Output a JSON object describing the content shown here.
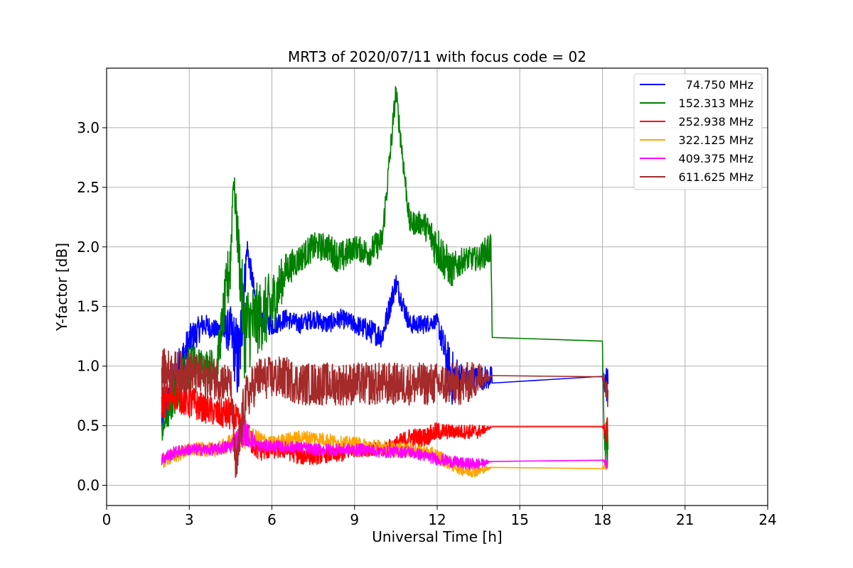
{
  "chart_data": {
    "type": "line",
    "title": "MRT3 of 2020/07/11 with focus code = 02",
    "xlabel": "Universal Time [h]",
    "ylabel": "Y-factor [dB]",
    "xlim": [
      0,
      24
    ],
    "ylim": [
      -0.17,
      3.5
    ],
    "xticks": [
      0,
      3,
      6,
      9,
      12,
      15,
      18,
      21,
      24
    ],
    "xtick_labels": [
      "0",
      "3",
      "6",
      "9",
      "12",
      "15",
      "18",
      "21",
      "24"
    ],
    "yticks": [
      0.0,
      0.5,
      1.0,
      1.5,
      2.0,
      2.5,
      3.0
    ],
    "ytick_labels": [
      "0.0",
      "0.5",
      "1.0",
      "1.5",
      "2.0",
      "2.5",
      "3.0"
    ],
    "grid": true,
    "legend_position": "top-right",
    "series": [
      {
        "name": "74.750 MHz",
        "color": "#0000ff",
        "x": [
          2.0,
          2.5,
          3.0,
          3.5,
          4.0,
          4.5,
          4.8,
          5.1,
          5.5,
          6.0,
          6.5,
          7.0,
          7.5,
          8.0,
          8.5,
          9.0,
          9.5,
          10.0,
          10.5,
          11.0,
          11.5,
          12.0,
          12.5,
          13.0,
          13.5,
          14.0,
          18.0,
          18.2
        ],
        "y": [
          0.55,
          0.9,
          1.2,
          1.35,
          1.3,
          1.3,
          1.0,
          2.0,
          1.4,
          1.35,
          1.4,
          1.35,
          1.4,
          1.35,
          1.4,
          1.35,
          1.3,
          1.25,
          1.7,
          1.35,
          1.35,
          1.38,
          0.9,
          0.9,
          0.9,
          0.9,
          0.89,
          0.85
        ],
        "noise": [
          0.2,
          0.2,
          0.15,
          0.1,
          0.08,
          0.2,
          0.4,
          0.1,
          0.1,
          0.1,
          0.08,
          0.08,
          0.08,
          0.08,
          0.08,
          0.08,
          0.1,
          0.1,
          0.1,
          0.08,
          0.08,
          0.06,
          0.25,
          0.1,
          0.1,
          0.1,
          0.05,
          0.2
        ]
      },
      {
        "name": "152.313 MHz",
        "color": "#008000",
        "x": [
          2.0,
          2.5,
          3.0,
          3.5,
          4.0,
          4.5,
          4.6,
          5.0,
          5.5,
          6.0,
          6.5,
          7.0,
          7.5,
          8.0,
          8.5,
          9.0,
          9.5,
          10.0,
          10.5,
          11.0,
          11.5,
          12.0,
          12.5,
          13.0,
          13.5,
          13.95,
          14.0,
          18.0,
          18.05,
          18.2
        ],
        "y": [
          0.45,
          0.8,
          1.0,
          1.0,
          1.0,
          1.9,
          2.6,
          1.3,
          1.4,
          1.5,
          1.8,
          1.9,
          2.0,
          2.0,
          1.9,
          2.0,
          1.95,
          2.05,
          3.3,
          2.2,
          2.2,
          2.0,
          1.8,
          1.9,
          1.9,
          2.0,
          1.24,
          1.21,
          0.4,
          0.3
        ],
        "noise": [
          0.1,
          0.2,
          0.2,
          0.15,
          0.15,
          0.3,
          0.1,
          0.4,
          0.3,
          0.3,
          0.15,
          0.12,
          0.12,
          0.12,
          0.15,
          0.1,
          0.12,
          0.12,
          0.1,
          0.1,
          0.1,
          0.2,
          0.15,
          0.1,
          0.1,
          0.15,
          0.0,
          0.0,
          0.2,
          0.2
        ]
      },
      {
        "name": "252.938 MHz",
        "color": "#ff0000",
        "x": [
          2.0,
          2.5,
          3.0,
          3.5,
          4.0,
          4.5,
          5.0,
          5.5,
          6.0,
          6.5,
          7.0,
          7.5,
          8.0,
          8.5,
          9.0,
          9.5,
          10.0,
          10.5,
          11.0,
          11.5,
          12.0,
          12.5,
          13.0,
          13.5,
          14.0,
          18.0,
          18.2
        ],
        "y": [
          0.7,
          0.75,
          0.7,
          0.65,
          0.6,
          0.6,
          0.45,
          0.3,
          0.3,
          0.3,
          0.25,
          0.25,
          0.25,
          0.25,
          0.3,
          0.3,
          0.3,
          0.35,
          0.4,
          0.4,
          0.45,
          0.45,
          0.45,
          0.45,
          0.49,
          0.49,
          0.45
        ],
        "noise": [
          0.15,
          0.12,
          0.15,
          0.12,
          0.12,
          0.15,
          0.12,
          0.1,
          0.08,
          0.08,
          0.08,
          0.08,
          0.06,
          0.06,
          0.06,
          0.06,
          0.06,
          0.06,
          0.08,
          0.08,
          0.08,
          0.06,
          0.06,
          0.06,
          0.0,
          0.0,
          0.15
        ]
      },
      {
        "name": "322.125 MHz",
        "color": "#ffa500",
        "x": [
          2.0,
          2.5,
          3.0,
          3.5,
          4.0,
          4.5,
          5.0,
          5.5,
          6.0,
          6.5,
          7.0,
          7.5,
          8.0,
          8.5,
          9.0,
          9.5,
          10.0,
          10.5,
          11.0,
          11.5,
          12.0,
          12.5,
          13.0,
          13.5,
          14.0,
          18.0,
          18.2
        ],
        "y": [
          0.2,
          0.25,
          0.3,
          0.3,
          0.3,
          0.35,
          0.4,
          0.4,
          0.35,
          0.38,
          0.4,
          0.4,
          0.38,
          0.35,
          0.35,
          0.33,
          0.32,
          0.3,
          0.3,
          0.28,
          0.25,
          0.18,
          0.12,
          0.12,
          0.15,
          0.14,
          0.2
        ],
        "noise": [
          0.06,
          0.06,
          0.06,
          0.06,
          0.06,
          0.08,
          0.1,
          0.06,
          0.06,
          0.06,
          0.06,
          0.06,
          0.06,
          0.06,
          0.06,
          0.06,
          0.06,
          0.06,
          0.06,
          0.06,
          0.06,
          0.06,
          0.05,
          0.05,
          0.0,
          0.0,
          0.08
        ]
      },
      {
        "name": "409.375 MHz",
        "color": "#ff00ff",
        "x": [
          2.0,
          2.5,
          3.0,
          3.5,
          4.0,
          4.5,
          5.0,
          5.5,
          6.0,
          6.5,
          7.0,
          7.5,
          8.0,
          8.5,
          9.0,
          9.5,
          10.0,
          10.5,
          11.0,
          11.5,
          12.0,
          12.5,
          13.0,
          13.5,
          14.0,
          18.0,
          18.2
        ],
        "y": [
          0.22,
          0.28,
          0.3,
          0.3,
          0.3,
          0.33,
          0.45,
          0.33,
          0.33,
          0.32,
          0.32,
          0.3,
          0.3,
          0.3,
          0.3,
          0.3,
          0.28,
          0.28,
          0.28,
          0.25,
          0.22,
          0.2,
          0.18,
          0.18,
          0.2,
          0.21,
          0.2
        ],
        "noise": [
          0.06,
          0.05,
          0.05,
          0.05,
          0.05,
          0.06,
          0.12,
          0.05,
          0.05,
          0.05,
          0.05,
          0.05,
          0.05,
          0.05,
          0.05,
          0.05,
          0.05,
          0.05,
          0.05,
          0.05,
          0.05,
          0.05,
          0.05,
          0.05,
          0.0,
          0.0,
          0.08
        ]
      },
      {
        "name": "611.625 MHz",
        "color": "#a52a2a",
        "x": [
          2.0,
          2.5,
          3.0,
          3.5,
          4.0,
          4.5,
          4.7,
          5.0,
          5.5,
          6.0,
          6.5,
          7.0,
          7.5,
          8.0,
          8.5,
          9.0,
          9.5,
          10.0,
          10.5,
          11.0,
          11.5,
          12.0,
          12.5,
          13.0,
          13.5,
          14.0,
          18.0,
          18.2
        ],
        "y": [
          0.95,
          0.95,
          0.95,
          0.9,
          0.9,
          0.85,
          0.1,
          0.7,
          0.9,
          0.9,
          0.9,
          0.85,
          0.85,
          0.85,
          0.85,
          0.85,
          0.85,
          0.85,
          0.85,
          0.85,
          0.85,
          0.85,
          0.85,
          0.85,
          0.9,
          0.92,
          0.91,
          0.8
        ],
        "noise": [
          0.2,
          0.18,
          0.18,
          0.18,
          0.18,
          0.15,
          0.2,
          0.2,
          0.18,
          0.18,
          0.18,
          0.18,
          0.18,
          0.18,
          0.18,
          0.18,
          0.18,
          0.18,
          0.18,
          0.18,
          0.18,
          0.18,
          0.18,
          0.18,
          0.15,
          0.0,
          0.0,
          0.2
        ]
      }
    ]
  }
}
